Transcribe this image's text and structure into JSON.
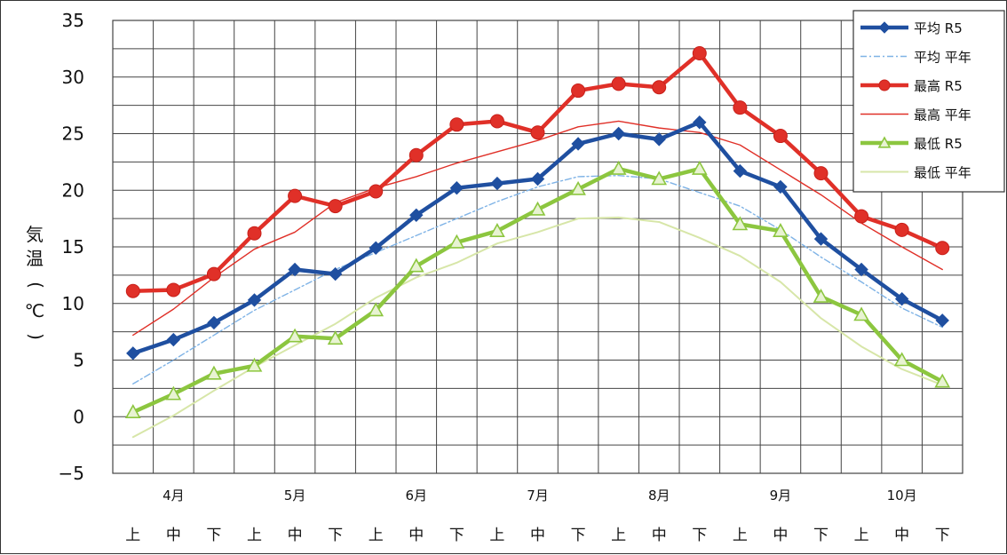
{
  "chart_data": {
    "type": "line",
    "ylabel": [
      "気",
      "温",
      "(",
      "℃",
      ")"
    ],
    "ylim": [
      -5,
      35
    ],
    "yticks": [
      35,
      30,
      25,
      20,
      15,
      10,
      5,
      0,
      -5
    ],
    "months": [
      "4月",
      "5月",
      "6月",
      "7月",
      "8月",
      "9月",
      "10月"
    ],
    "x": [
      "上",
      "中",
      "下",
      "上",
      "中",
      "下",
      "上",
      "中",
      "下",
      "上",
      "中",
      "下",
      "上",
      "中",
      "下",
      "上",
      "中",
      "下",
      "上",
      "中",
      "下"
    ],
    "grid": true,
    "legend_position": "top-right",
    "series": [
      {
        "name": "平均 R5",
        "color": "#1f4fa0",
        "style": "solid",
        "marker": "diamond",
        "values": [
          5.6,
          6.8,
          8.3,
          10.3,
          13.0,
          12.6,
          14.9,
          17.8,
          20.2,
          20.6,
          21.0,
          24.1,
          25.0,
          24.5,
          26.0,
          21.7,
          20.3,
          15.7,
          13.0,
          10.4,
          8.5
        ]
      },
      {
        "name": "平均 平年",
        "color": "#7fb3e6",
        "style": "dashdot",
        "marker": "none",
        "values": [
          2.9,
          5.0,
          7.2,
          9.4,
          11.2,
          13.0,
          14.5,
          16.0,
          17.5,
          19.0,
          20.3,
          21.2,
          21.3,
          21.0,
          19.8,
          18.6,
          16.5,
          14.1,
          11.9,
          9.6,
          7.9
        ]
      },
      {
        "name": "最高 R5",
        "color": "#e03028",
        "style": "solid",
        "marker": "circle",
        "values": [
          11.1,
          11.2,
          12.6,
          16.2,
          19.5,
          18.6,
          19.9,
          23.1,
          25.8,
          26.1,
          25.1,
          28.8,
          29.4,
          29.1,
          32.1,
          27.3,
          24.8,
          21.5,
          17.7,
          16.5,
          14.9
        ]
      },
      {
        "name": "最高 平年",
        "color": "#e03028",
        "style": "thin",
        "marker": "none",
        "values": [
          7.2,
          9.5,
          12.3,
          14.8,
          16.3,
          18.9,
          20.2,
          21.2,
          22.4,
          23.4,
          24.4,
          25.6,
          26.1,
          25.5,
          25.1,
          24.0,
          21.8,
          19.6,
          17.1,
          15.0,
          13.0
        ]
      },
      {
        "name": "最低 R5",
        "color": "#8cc63f",
        "style": "solid",
        "marker": "triangle",
        "values": [
          0.4,
          2.0,
          3.8,
          4.5,
          7.1,
          6.9,
          9.4,
          13.3,
          15.4,
          16.4,
          18.3,
          20.1,
          21.9,
          21.0,
          21.9,
          17.0,
          16.4,
          10.6,
          9.0,
          5.0,
          3.1
        ]
      },
      {
        "name": "最低 平年",
        "color": "#d7e6a8",
        "style": "solid-light",
        "marker": "none",
        "values": [
          -1.8,
          0.1,
          2.3,
          4.4,
          6.3,
          8.2,
          10.5,
          12.3,
          13.6,
          15.3,
          16.3,
          17.5,
          17.6,
          17.2,
          15.8,
          14.2,
          11.9,
          8.7,
          6.2,
          4.2,
          2.8
        ]
      }
    ]
  }
}
